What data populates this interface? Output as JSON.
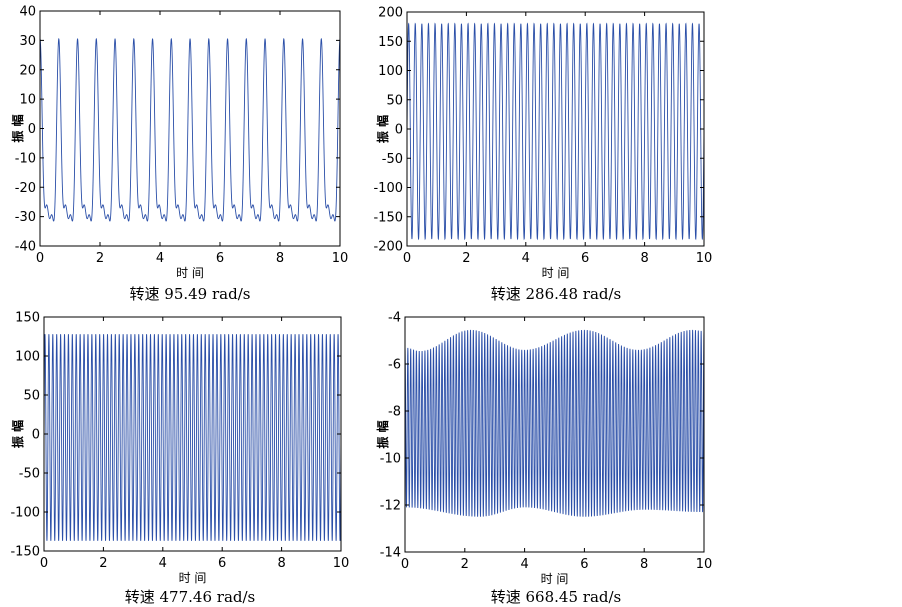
{
  "chart_data": [
    {
      "type": "line",
      "caption": "转速 95.49 rad/s",
      "xlabel": "时 间",
      "ylabel": "振 幅",
      "xlim": [
        0,
        10
      ],
      "ylim": [
        -40,
        40
      ],
      "xticks": [
        "0",
        "2",
        "4",
        "6",
        "8",
        "10"
      ],
      "yticks": [
        "40",
        "30",
        "20",
        "10",
        "0",
        "-10",
        "-20",
        "-30",
        "-40"
      ],
      "grid": false,
      "line_color": "#2b4fa8",
      "series": [
        {
          "cycles": 16,
          "waveform": "peaked",
          "max": 30.5,
          "min": -31.5,
          "secondary_dip": -22,
          "shoulder": -6
        }
      ]
    },
    {
      "type": "line",
      "caption": "转速 286.48 rad/s",
      "xlabel": "时 间",
      "ylabel": "振 幅",
      "xlim": [
        0,
        10
      ],
      "ylim": [
        -200,
        200
      ],
      "xticks": [
        "0",
        "2",
        "4",
        "6",
        "8",
        "10"
      ],
      "yticks": [
        "200",
        "150",
        "100",
        "50",
        "0",
        "-50",
        "-100",
        "-150",
        "-200"
      ],
      "grid": false,
      "line_color": "#2b4fa8",
      "series": [
        {
          "cycles": 45,
          "waveform": "sine",
          "max": 180,
          "min": -188
        }
      ]
    },
    {
      "type": "line",
      "caption": "转速 477.46 rad/s",
      "xlabel": "时 间",
      "ylabel": "振 幅",
      "xlim": [
        0,
        10
      ],
      "ylim": [
        -150,
        150
      ],
      "xticks": [
        "0",
        "2",
        "4",
        "6",
        "8",
        "10"
      ],
      "yticks": [
        "150",
        "100",
        "50",
        "0",
        "-50",
        "-100",
        "-150"
      ],
      "grid": false,
      "line_color": "#2b4fa8",
      "series": [
        {
          "cycles": 76,
          "waveform": "sine",
          "max": 128,
          "min": -137
        }
      ]
    },
    {
      "type": "line",
      "caption": "转速 668.45 rad/s",
      "xlabel": "时 间",
      "ylabel": "振 幅",
      "xlim": [
        0,
        10
      ],
      "ylim": [
        -14,
        -4
      ],
      "xticks": [
        "0",
        "2",
        "4",
        "6",
        "8",
        "10"
      ],
      "yticks": [
        "-4",
        "-6",
        "-8",
        "-10",
        "-12",
        "-14"
      ],
      "grid": false,
      "line_color": "#2b4fa8",
      "series": [
        {
          "cycles": 105,
          "waveform": "sine-envelope",
          "upper_envelope": [
            [
              0,
              -5.3
            ],
            [
              0.5,
              -5.45
            ],
            [
              2.2,
              -4.55
            ],
            [
              4.0,
              -5.4
            ],
            [
              6.0,
              -4.55
            ],
            [
              7.8,
              -5.4
            ],
            [
              9.6,
              -4.55
            ],
            [
              10,
              -4.6
            ]
          ],
          "lower_envelope": [
            [
              0,
              -12.1
            ],
            [
              2.5,
              -12.5
            ],
            [
              4.0,
              -12.1
            ],
            [
              6.0,
              -12.5
            ],
            [
              8.0,
              -12.2
            ],
            [
              10,
              -12.3
            ]
          ]
        }
      ]
    }
  ]
}
